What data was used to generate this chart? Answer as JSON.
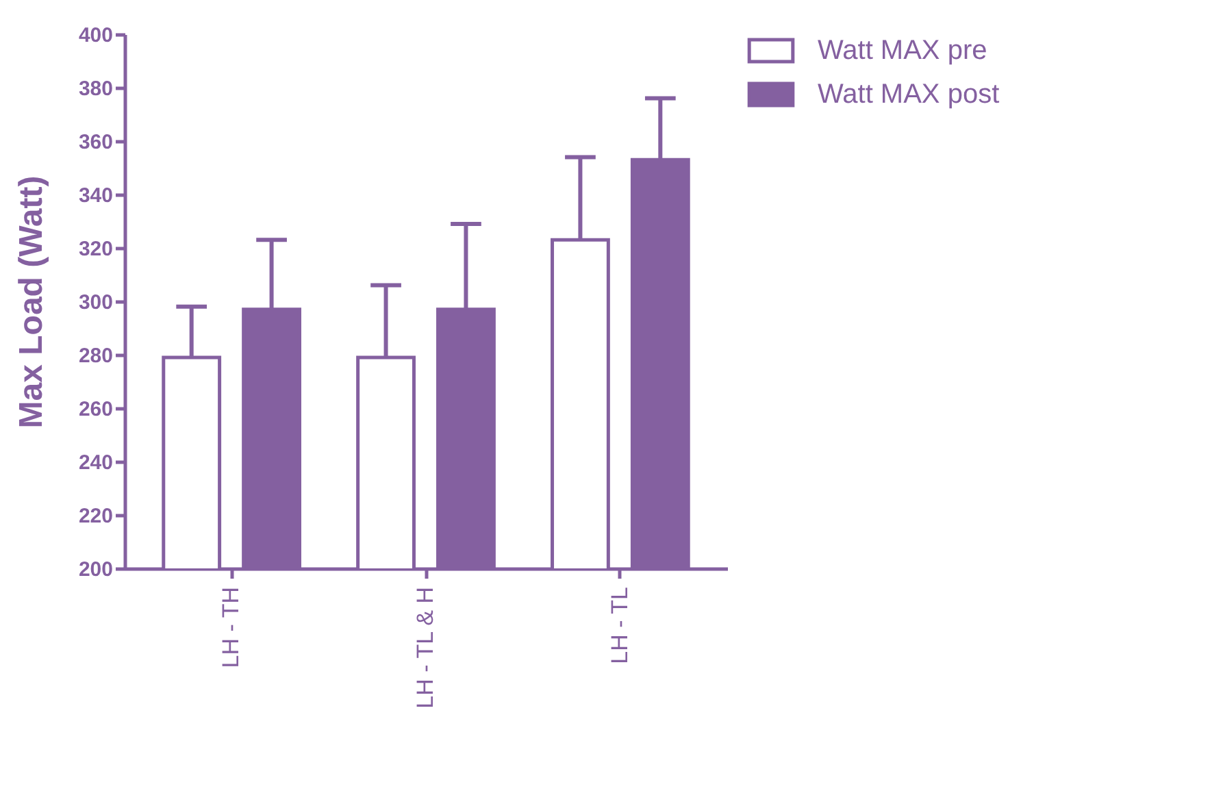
{
  "chart_data": {
    "type": "bar",
    "ylabel": "Max Load (Watt)",
    "categories": [
      "LH - TH",
      "LH - TL & H",
      "LH - TL"
    ],
    "series": [
      {
        "name": "Watt MAX pre",
        "color": "#ffffff",
        "values": [
          279,
          279,
          323
        ],
        "errors": [
          [
            279,
            298
          ],
          [
            279,
            306
          ],
          [
            323,
            354
          ]
        ]
      },
      {
        "name": "Watt MAX post",
        "color": "#8460a0",
        "values": [
          297,
          297,
          353
        ],
        "errors": [
          [
            297,
            323
          ],
          [
            297,
            329
          ],
          [
            353,
            376
          ]
        ]
      }
    ],
    "ylim": [
      200,
      400
    ],
    "yticks": [
      200,
      220,
      240,
      260,
      280,
      300,
      320,
      340,
      360,
      380,
      400
    ],
    "grid": false,
    "legend": "right"
  }
}
